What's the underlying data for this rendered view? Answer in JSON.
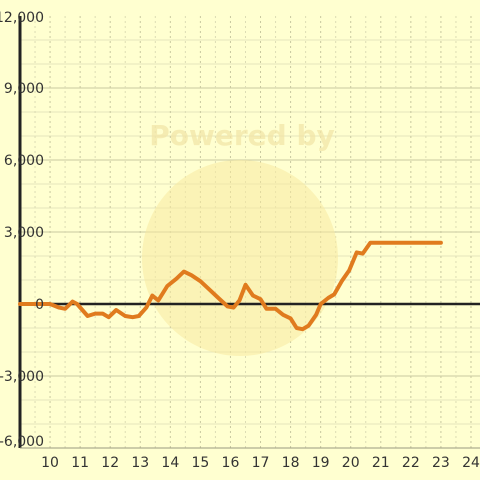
{
  "chart_data": {
    "type": "line",
    "title": "",
    "xlabel": "",
    "ylabel": "",
    "xlim": [
      9,
      24.3
    ],
    "ylim": [
      -6000,
      12000
    ],
    "x_ticks": [
      10,
      11,
      12,
      13,
      14,
      15,
      16,
      17,
      18,
      19,
      20,
      21,
      22,
      23,
      24
    ],
    "x_tick_labels": [
      "10",
      "11",
      "12",
      "13",
      "14",
      "15",
      "16",
      "17",
      "18",
      "19",
      "20",
      "21",
      "22",
      "23",
      "24"
    ],
    "y_ticks": [
      -6000,
      -3000,
      0,
      3000,
      6000,
      9000,
      12000
    ],
    "y_tick_labels": [
      "-6,000",
      "-3,000",
      "0",
      "3,000",
      "6,000",
      "9,000",
      "12,000"
    ],
    "grid": true,
    "legend": "none",
    "series": [
      {
        "color": "#e07b1e",
        "x": [
          9.0,
          9.5,
          10.0,
          10.3,
          10.5,
          10.75,
          10.9,
          11.25,
          11.5,
          11.75,
          11.95,
          12.2,
          12.5,
          12.75,
          12.95,
          13.2,
          13.4,
          13.6,
          13.9,
          14.2,
          14.45,
          14.7,
          15.0,
          15.3,
          15.6,
          15.9,
          16.1,
          16.3,
          16.5,
          16.75,
          17.0,
          17.2,
          17.5,
          17.75,
          18.0,
          18.2,
          18.4,
          18.6,
          18.85,
          19.0,
          19.25,
          19.45,
          19.7,
          19.95,
          20.2,
          20.4,
          20.65,
          20.8,
          21.0,
          21.5,
          22.0,
          22.5,
          23.0
        ],
        "y": [
          0,
          0,
          0,
          -150,
          -200,
          100,
          0,
          -500,
          -400,
          -400,
          -550,
          -250,
          -500,
          -550,
          -500,
          -150,
          350,
          150,
          750,
          1050,
          1350,
          1200,
          950,
          600,
          250,
          -100,
          -150,
          150,
          800,
          350,
          200,
          -200,
          -200,
          -450,
          -600,
          -1000,
          -1050,
          -900,
          -450,
          0,
          250,
          400,
          950,
          1400,
          2150,
          2100,
          2550,
          2550,
          2550,
          2550,
          2550,
          2550,
          2550
        ]
      }
    ]
  }
}
